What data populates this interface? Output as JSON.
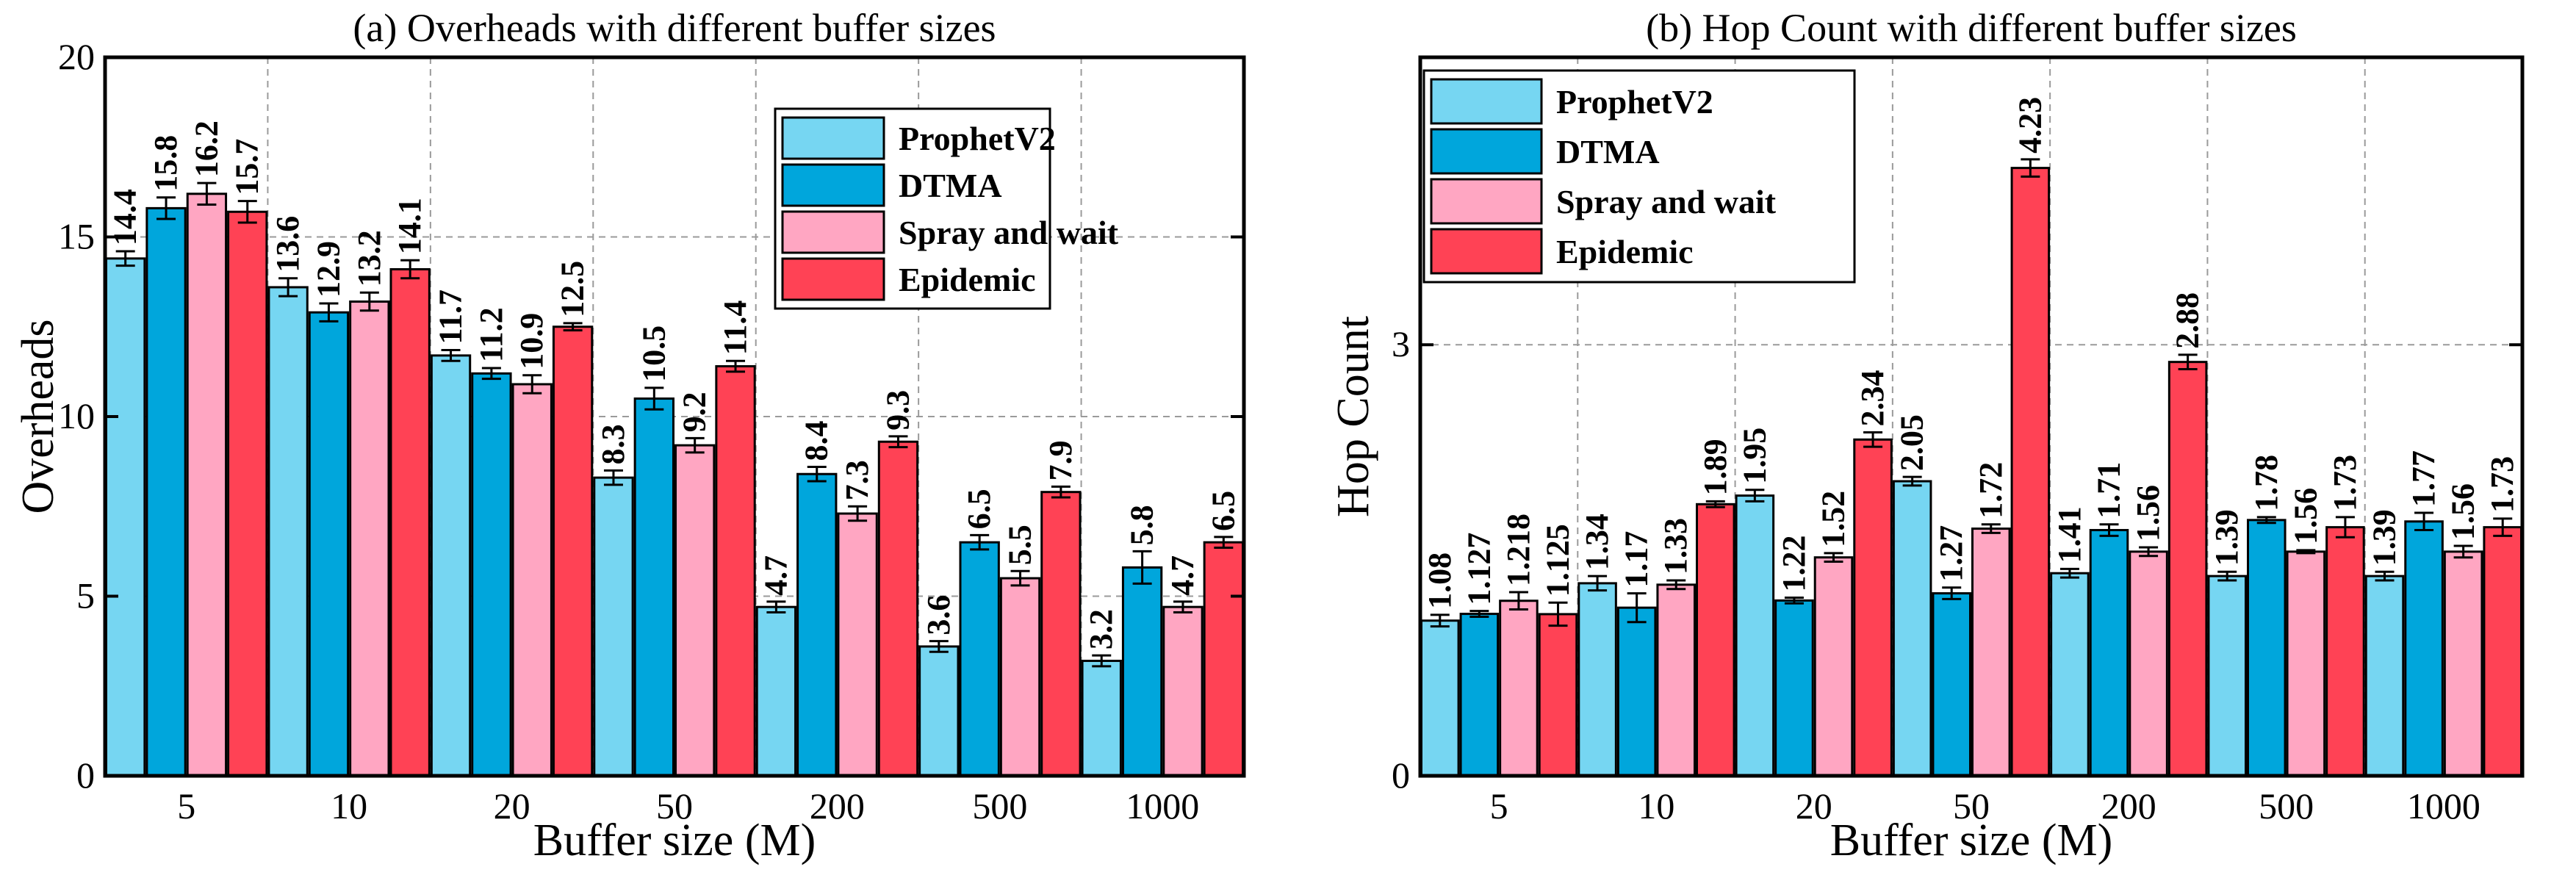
{
  "chart_data": [
    {
      "type": "bar",
      "title": "(a) Overheads with different buffer sizes",
      "xlabel": "Buffer size (M)",
      "ylabel": "Overheads",
      "ylim": [
        0,
        20
      ],
      "yticks": [
        "0",
        "5",
        "10",
        "15",
        "20"
      ],
      "categories": [
        "5",
        "10",
        "20",
        "50",
        "200",
        "500",
        "1000"
      ],
      "legend_position": "top-right",
      "grid": true,
      "series": [
        {
          "name": "ProphetV2",
          "color": "#76D6F2",
          "values": [
            14.4,
            13.6,
            11.7,
            8.3,
            4.7,
            3.6,
            3.2
          ],
          "labels": [
            "14.4",
            "13.6",
            "11.7",
            "8.3",
            "4.7",
            "3.6",
            "3.2"
          ],
          "errors": [
            0.2,
            0.25,
            0.15,
            0.2,
            0.15,
            0.15,
            0.15
          ]
        },
        {
          "name": "DTMA",
          "color": "#00A6DC",
          "values": [
            15.8,
            12.9,
            11.2,
            10.5,
            8.4,
            6.5,
            5.8
          ],
          "labels": [
            "15.8",
            "12.9",
            "11.2",
            "10.5",
            "8.4",
            "6.5",
            "5.8"
          ],
          "errors": [
            0.3,
            0.25,
            0.15,
            0.3,
            0.2,
            0.2,
            0.45
          ]
        },
        {
          "name": "Spray and wait",
          "color": "#FFA6C2",
          "values": [
            16.2,
            13.2,
            10.9,
            9.2,
            7.3,
            5.5,
            4.7
          ],
          "labels": [
            "16.2",
            "13.2",
            "10.9",
            "9.2",
            "7.3",
            "5.5",
            "4.7"
          ],
          "errors": [
            0.3,
            0.25,
            0.25,
            0.2,
            0.2,
            0.2,
            0.15
          ]
        },
        {
          "name": "Epidemic",
          "color": "#FF4255",
          "values": [
            15.7,
            14.1,
            12.5,
            11.4,
            9.3,
            7.9,
            6.5
          ],
          "labels": [
            "15.7",
            "14.1",
            "12.5",
            "11.4",
            "9.3",
            "7.9",
            "6.5"
          ],
          "errors": [
            0.3,
            0.25,
            0.1,
            0.15,
            0.15,
            0.15,
            0.15
          ]
        }
      ]
    },
    {
      "type": "bar",
      "title": "(b) Hop Count with different buffer sizes",
      "xlabel": "Buffer size (M)",
      "ylabel": "Hop Count",
      "ylim": [
        0,
        5
      ],
      "yticks_values": [
        0,
        3
      ],
      "yticks": [
        "0",
        "3"
      ],
      "categories": [
        "5",
        "10",
        "20",
        "50",
        "200",
        "500",
        "1000"
      ],
      "legend_position": "top-left",
      "grid": true,
      "series": [
        {
          "name": "ProphetV2",
          "color": "#76D6F2",
          "values": [
            1.08,
            1.34,
            1.95,
            2.05,
            1.41,
            1.39,
            1.39
          ],
          "labels": [
            "1.08",
            "1.34",
            "1.95",
            "2.05",
            "1.41",
            "1.39",
            "1.39"
          ],
          "errors": [
            0.04,
            0.05,
            0.04,
            0.03,
            0.03,
            0.03,
            0.03
          ]
        },
        {
          "name": "DTMA",
          "color": "#00A6DC",
          "values": [
            1.127,
            1.17,
            1.22,
            1.27,
            1.71,
            1.78,
            1.77
          ],
          "labels": [
            "1.127",
            "1.17",
            "1.22",
            "1.27",
            "1.71",
            "1.78",
            "1.77"
          ],
          "errors": [
            0.02,
            0.1,
            0.02,
            0.04,
            0.04,
            0.02,
            0.06
          ]
        },
        {
          "name": "Spray and wait",
          "color": "#FFA6C2",
          "values": [
            1.218,
            1.33,
            1.52,
            1.72,
            1.56,
            1.56,
            1.56
          ],
          "labels": [
            "1.218",
            "1.33",
            "1.52",
            "1.72",
            "1.56",
            "1.56",
            "1.56"
          ],
          "errors": [
            0.06,
            0.03,
            0.03,
            0.03,
            0.03,
            0.01,
            0.04
          ]
        },
        {
          "name": "Epidemic",
          "color": "#FF4255",
          "values": [
            1.125,
            1.89,
            2.34,
            4.23,
            2.88,
            1.73,
            1.73
          ],
          "labels": [
            "1.125",
            "1.89",
            "2.34",
            "4.23",
            "2.88",
            "1.73",
            "1.73"
          ],
          "errors": [
            0.08,
            0.02,
            0.05,
            0.06,
            0.05,
            0.07,
            0.06
          ]
        }
      ]
    }
  ]
}
